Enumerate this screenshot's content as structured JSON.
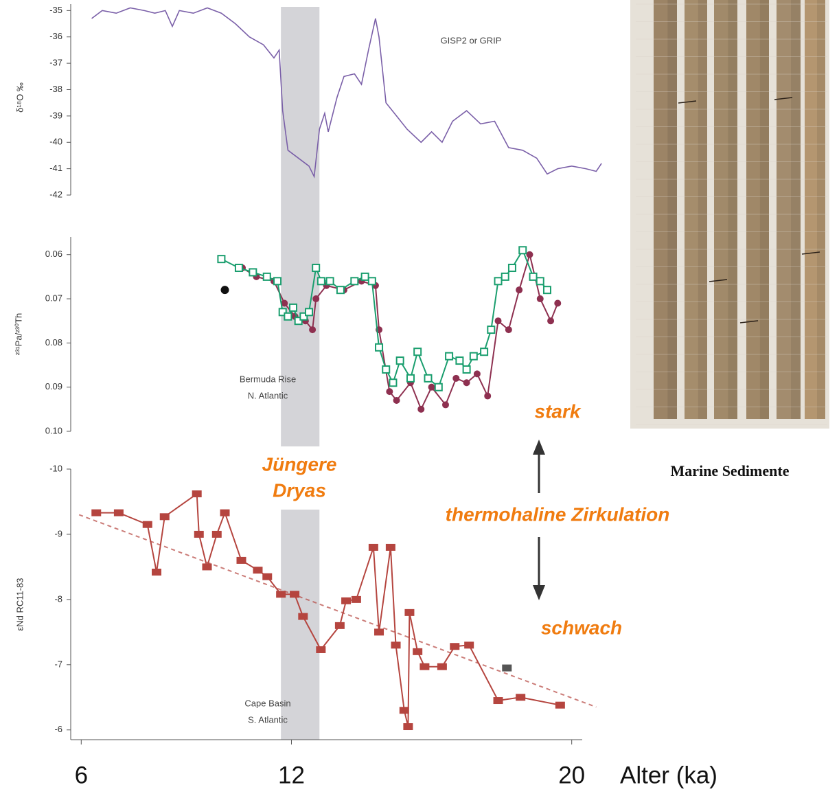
{
  "chart_data": [
    {
      "type": "line",
      "y_label": "δ¹⁸O ‰",
      "annotation": [
        "GISP2 or GRIP"
      ],
      "ylim": [
        -42,
        -34.6
      ],
      "yticks": [
        -35,
        -36,
        -37,
        -38,
        -39,
        -40,
        -41,
        -42
      ],
      "series": [
        {
          "color": "#7a5fa8",
          "marker": "none",
          "connect": true,
          "x": [
            6.3,
            6.6,
            7.0,
            7.4,
            7.8,
            8.1,
            8.4,
            8.6,
            8.8,
            9.2,
            9.6,
            10.0,
            10.4,
            10.8,
            11.2,
            11.5,
            11.65,
            11.75,
            11.9,
            12.2,
            12.5,
            12.65,
            12.8,
            12.95,
            13.05,
            13.3,
            13.5,
            13.8,
            14.0,
            14.2,
            14.4,
            14.5,
            14.7,
            15.0,
            15.3,
            15.7,
            16.0,
            16.3,
            16.6,
            17.0,
            17.4,
            17.8,
            18.2,
            18.6,
            19.0,
            19.3,
            19.6,
            20.0,
            20.4,
            20.7,
            20.85
          ],
          "values": [
            -35.3,
            -35.0,
            -35.1,
            -34.9,
            -35.0,
            -35.1,
            -35.0,
            -35.6,
            -35.0,
            -35.1,
            -34.9,
            -35.1,
            -35.5,
            -36.0,
            -36.3,
            -36.8,
            -36.5,
            -38.8,
            -40.3,
            -40.6,
            -40.9,
            -41.3,
            -39.5,
            -38.9,
            -39.6,
            -38.3,
            -37.5,
            -37.4,
            -37.8,
            -36.5,
            -35.3,
            -36.0,
            -38.5,
            -39.0,
            -39.5,
            -40.0,
            -39.6,
            -40.0,
            -39.2,
            -38.8,
            -39.3,
            -39.2,
            -40.2,
            -40.3,
            -40.6,
            -41.2,
            -41.0,
            -40.9,
            -41.0,
            -41.1,
            -40.8
          ]
        }
      ]
    },
    {
      "type": "line",
      "y_label": "²³¹Pa/²³⁰Th",
      "annotation": [
        "Bermuda Rise",
        "N. Atlantic"
      ],
      "ylim": [
        0.1,
        0.056
      ],
      "yticks": [
        0.06,
        0.07,
        0.08,
        0.09,
        {
          "value": 0.1,
          "label": "0.10"
        }
      ],
      "series": [
        {
          "color": "#8e3050",
          "marker": "circle",
          "connect": true,
          "x": [
            10.6,
            11.0,
            11.5,
            11.8,
            12.1,
            12.4,
            12.6,
            12.7,
            13.0,
            13.5,
            14.0,
            14.4,
            14.5,
            14.8,
            15.0,
            15.4,
            15.7,
            16.0,
            16.4,
            16.7,
            17.0,
            17.3,
            17.6,
            17.9,
            18.2,
            18.5,
            18.8,
            19.1,
            19.4,
            19.6
          ],
          "values": [
            0.063,
            0.065,
            0.066,
            0.071,
            0.074,
            0.075,
            0.077,
            0.07,
            0.067,
            0.068,
            0.066,
            0.067,
            0.077,
            0.091,
            0.093,
            0.089,
            0.095,
            0.09,
            0.094,
            0.088,
            0.089,
            0.087,
            0.092,
            0.075,
            0.077,
            0.068,
            0.06,
            0.07,
            0.075,
            0.071
          ]
        },
        {
          "color": "#1a9e6e",
          "marker": "square-open",
          "connect": true,
          "x": [
            10.0,
            10.5,
            10.9,
            11.3,
            11.6,
            11.75,
            11.9,
            12.05,
            12.2,
            12.35,
            12.5,
            12.7,
            12.85,
            13.1,
            13.4,
            13.8,
            14.1,
            14.3,
            14.5,
            14.7,
            14.9,
            15.1,
            15.4,
            15.6,
            15.9,
            16.2,
            16.5,
            16.8,
            17.0,
            17.2,
            17.5,
            17.7,
            17.9,
            18.1,
            18.3,
            18.6,
            18.9,
            19.1,
            19.3
          ],
          "values": [
            0.061,
            0.063,
            0.064,
            0.065,
            0.066,
            0.073,
            0.074,
            0.072,
            0.075,
            0.074,
            0.073,
            0.063,
            0.066,
            0.066,
            0.068,
            0.066,
            0.065,
            0.066,
            0.081,
            0.086,
            0.089,
            0.084,
            0.088,
            0.082,
            0.088,
            0.09,
            0.083,
            0.084,
            0.086,
            0.083,
            0.082,
            0.077,
            0.066,
            0.065,
            0.063,
            0.059,
            0.065,
            0.066,
            0.068
          ]
        },
        {
          "color": "#111111",
          "marker": "dot",
          "connect": false,
          "x": [
            10.1
          ],
          "values": [
            0.068
          ]
        }
      ]
    },
    {
      "type": "line",
      "y_label": "εNd RC11-83",
      "annotation": [
        "Cape Basin",
        "S. Atlantic"
      ],
      "ylim": [
        -5.85,
        -10
      ],
      "yticks": [
        -10,
        -9,
        -8,
        -7,
        -6
      ],
      "xlim": [
        5.7,
        20.3
      ],
      "xticks": [
        6,
        12,
        20
      ],
      "x_label": "Alter (ka)",
      "series": [
        {
          "color": "#b5453f",
          "marker": "none",
          "connect": true,
          "dash": true,
          "x": [
            5.94,
            20.7
          ],
          "values": [
            -9.3,
            -6.35
          ]
        },
        {
          "color": "#b5453f",
          "marker": "square",
          "connect": true,
          "x": [
            6.43,
            7.07,
            7.89,
            8.15,
            8.38,
            9.3,
            9.36,
            9.59,
            9.87,
            10.1,
            10.57,
            11.04,
            11.31,
            11.7,
            12.09,
            12.33,
            12.84,
            13.38,
            13.56,
            13.85,
            14.34,
            14.5,
            14.83,
            14.98,
            15.22,
            15.33,
            15.37,
            15.6,
            15.8,
            16.3,
            16.66,
            17.07,
            17.9,
            18.54,
            19.67
          ],
          "values": [
            -9.33,
            -9.33,
            -9.15,
            -8.42,
            -9.27,
            -9.62,
            -9.0,
            -8.5,
            -9.0,
            -9.33,
            -8.6,
            -8.45,
            -8.35,
            -8.08,
            -8.08,
            -7.74,
            -7.23,
            -7.6,
            -7.98,
            -8.0,
            -8.8,
            -7.5,
            -8.8,
            -7.3,
            -6.3,
            -6.05,
            -7.8,
            -7.2,
            -6.97,
            -6.97,
            -7.28,
            -7.3,
            -6.45,
            -6.5,
            -6.38
          ]
        },
        {
          "color": "#555555",
          "marker": "square",
          "connect": false,
          "x": [
            18.15
          ],
          "values": [
            -6.95
          ]
        }
      ]
    }
  ],
  "shaded_band": {
    "label": [
      "Jüngere",
      "Dryas"
    ],
    "xlim": [
      11.7,
      12.8
    ]
  },
  "circulation": {
    "strong": "stark",
    "label": "thermohaline Zirkulation",
    "weak": "schwach"
  },
  "photo_caption": "Marine Sedimente"
}
